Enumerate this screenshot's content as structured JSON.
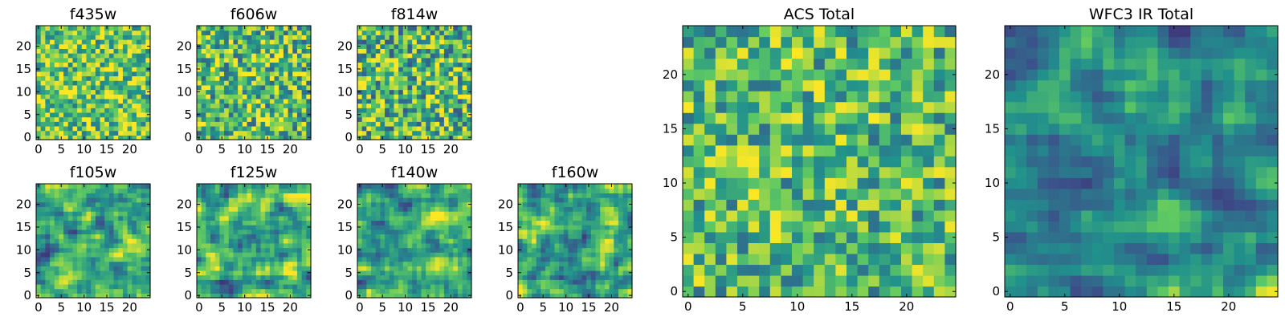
{
  "colormap": [
    "#440154",
    "#3b528b",
    "#21918c",
    "#5ec962",
    "#fde725"
  ],
  "chart_data": [
    {
      "type": "heatmap",
      "title": "f435w",
      "grid_size": 25,
      "xticks": [
        0,
        5,
        10,
        15,
        20
      ],
      "yticks": [
        0,
        5,
        10,
        15,
        20
      ],
      "xlim": [
        0,
        25
      ],
      "ylim": [
        0,
        25
      ],
      "value_range": [
        0,
        1
      ],
      "grid": false,
      "seed": 435,
      "smooth": 0,
      "mean": 0.74,
      "spread": 0.34
    },
    {
      "type": "heatmap",
      "title": "f606w",
      "grid_size": 25,
      "xticks": [
        0,
        5,
        10,
        15,
        20
      ],
      "yticks": [
        0,
        5,
        10,
        15,
        20
      ],
      "xlim": [
        0,
        25
      ],
      "ylim": [
        0,
        25
      ],
      "value_range": [
        0,
        1
      ],
      "grid": false,
      "seed": 606,
      "smooth": 0,
      "mean": 0.7,
      "spread": 0.38
    },
    {
      "type": "heatmap",
      "title": "f814w",
      "grid_size": 25,
      "xticks": [
        0,
        5,
        10,
        15,
        20
      ],
      "yticks": [
        0,
        5,
        10,
        15,
        20
      ],
      "xlim": [
        0,
        25
      ],
      "ylim": [
        0,
        25
      ],
      "value_range": [
        0,
        1
      ],
      "grid": false,
      "seed": 814,
      "smooth": 0,
      "mean": 0.68,
      "spread": 0.4
    },
    {
      "type": "heatmap",
      "title": "f105w",
      "grid_size": 25,
      "xticks": [
        0,
        5,
        10,
        15,
        20
      ],
      "yticks": [
        0,
        5,
        10,
        15,
        20
      ],
      "xlim": [
        0,
        25
      ],
      "ylim": [
        0,
        25
      ],
      "value_range": [
        0,
        1
      ],
      "grid": false,
      "seed": 105,
      "smooth": 1,
      "mean": 0.62,
      "spread": 0.45
    },
    {
      "type": "heatmap",
      "title": "f125w",
      "grid_size": 25,
      "xticks": [
        0,
        5,
        10,
        15,
        20
      ],
      "yticks": [
        0,
        5,
        10,
        15,
        20
      ],
      "xlim": [
        0,
        25
      ],
      "ylim": [
        0,
        25
      ],
      "value_range": [
        0,
        1
      ],
      "grid": false,
      "seed": 125,
      "smooth": 1,
      "mean": 0.62,
      "spread": 0.45
    },
    {
      "type": "heatmap",
      "title": "f140w",
      "grid_size": 25,
      "xticks": [
        0,
        5,
        10,
        15,
        20
      ],
      "yticks": [
        0,
        5,
        10,
        15,
        20
      ],
      "xlim": [
        0,
        25
      ],
      "ylim": [
        0,
        25
      ],
      "value_range": [
        0,
        1
      ],
      "grid": false,
      "seed": 140,
      "smooth": 1,
      "mean": 0.64,
      "spread": 0.45
    },
    {
      "type": "heatmap",
      "title": "f160w",
      "grid_size": 25,
      "xticks": [
        0,
        5,
        10,
        15,
        20
      ],
      "yticks": [
        0,
        5,
        10,
        15,
        20
      ],
      "xlim": [
        0,
        25
      ],
      "ylim": [
        0,
        25
      ],
      "value_range": [
        0,
        1
      ],
      "grid": false,
      "seed": 160,
      "smooth": 1,
      "mean": 0.64,
      "spread": 0.45
    },
    {
      "type": "heatmap",
      "title": "ACS Total",
      "grid_size": 25,
      "xticks": [
        0,
        5,
        10,
        15,
        20
      ],
      "yticks": [
        0,
        5,
        10,
        15,
        20
      ],
      "xlim": [
        0,
        25
      ],
      "ylim": [
        0,
        25
      ],
      "value_range": [
        0,
        1
      ],
      "grid": false,
      "seed": 901,
      "smooth": 0,
      "mean": 0.68,
      "spread": 0.32
    },
    {
      "type": "heatmap",
      "title": "WFC3 IR Total",
      "grid_size": 25,
      "xticks": [
        0,
        5,
        10,
        15,
        20
      ],
      "yticks": [
        0,
        5,
        10,
        15,
        20
      ],
      "xlim": [
        0,
        25
      ],
      "ylim": [
        0,
        25
      ],
      "value_range": [
        0,
        1
      ],
      "grid": false,
      "seed": 902,
      "smooth": 1,
      "mean": 0.58,
      "spread": 0.4
    }
  ]
}
